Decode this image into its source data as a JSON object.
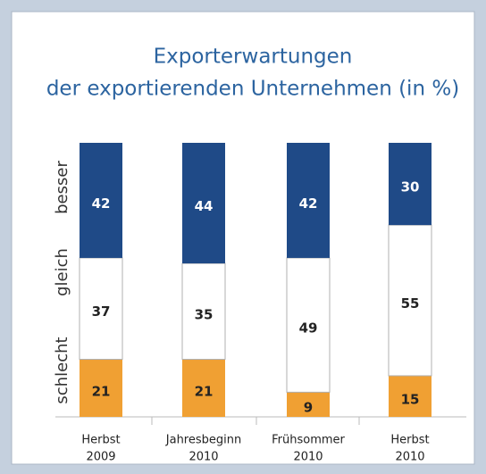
{
  "chart_data": {
    "type": "stacked_bar",
    "title": [
      "Exporterwartungen",
      "der exportierenden Unternehmen (in %)"
    ],
    "categories": [
      [
        "Herbst",
        "2009"
      ],
      [
        "Jahresbeginn",
        "2010"
      ],
      [
        "Frühsommer",
        "2010"
      ],
      [
        "Herbst",
        "2010"
      ]
    ],
    "series": [
      {
        "name": "schlecht",
        "color": "#f0a033",
        "values": [
          21,
          21,
          9,
          15
        ]
      },
      {
        "name": "gleich",
        "color": "#ffffff",
        "values": [
          37,
          35,
          49,
          55
        ]
      },
      {
        "name": "besser",
        "color": "#1f4a87",
        "values": [
          42,
          44,
          42,
          30
        ]
      }
    ],
    "ylim": [
      0,
      100
    ]
  }
}
